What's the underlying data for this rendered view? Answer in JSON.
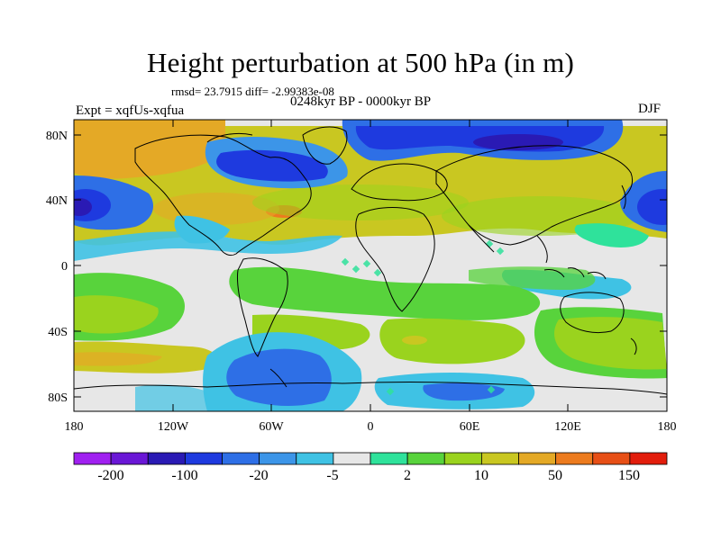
{
  "title": "Height perturbation at 500 hPa (in m)",
  "stats": "rmsd= 23.7915 diff= -2.99383e-08",
  "period": "0248kyr BP - 0000kyr BP",
  "experiment": "Expt = xqfUs-xqfua",
  "season": "DJF",
  "axes": {
    "lat_ticks": [
      "80N",
      "40N",
      "0",
      "40S",
      "80S"
    ],
    "lon_ticks": [
      "180",
      "120W",
      "60W",
      "0",
      "60E",
      "120E",
      "180"
    ]
  },
  "colorbar": {
    "colors": [
      "#a020f0",
      "#6a17d6",
      "#2a1ab4",
      "#1e3adf",
      "#2e6fe6",
      "#3c95e8",
      "#3fc2e4",
      "#e7e7e7",
      "#2fe29b",
      "#58d33c",
      "#9ad31e",
      "#c9c721",
      "#e4a926",
      "#ec7b1e",
      "#e74f16",
      "#e21d0c"
    ],
    "labels": [
      "-200",
      "-100",
      "-20",
      "-5",
      "2",
      "10",
      "50",
      "150"
    ]
  }
}
